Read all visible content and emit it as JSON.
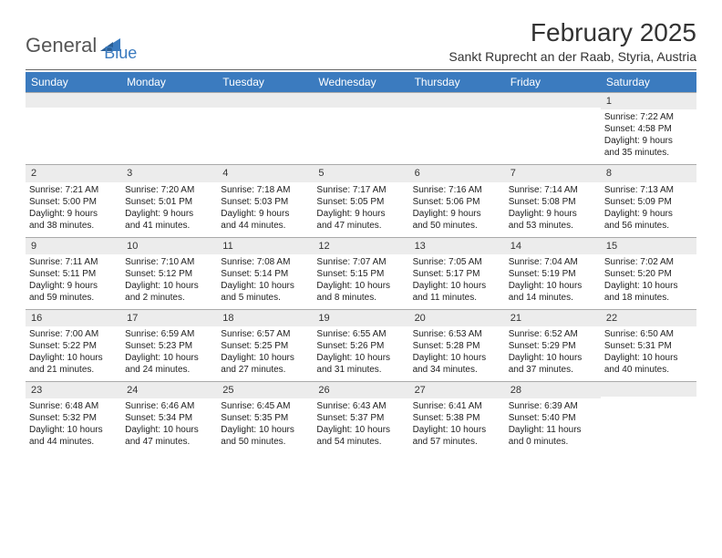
{
  "logo": {
    "text_gray": "General",
    "text_blue": "Blue",
    "shape_color": "#3b7bbf"
  },
  "header": {
    "month_title": "February 2025",
    "location": "Sankt Ruprecht an der Raab, Styria, Austria"
  },
  "weekdays": [
    "Sunday",
    "Monday",
    "Tuesday",
    "Wednesday",
    "Thursday",
    "Friday",
    "Saturday"
  ],
  "colors": {
    "header_bar": "#3b7bbf",
    "daynum_bg": "#ececec",
    "rule": "#666666",
    "text": "#222222"
  },
  "weeks": [
    [
      {
        "day": "",
        "sunrise": "",
        "sunset": "",
        "daylight1": "",
        "daylight2": ""
      },
      {
        "day": "",
        "sunrise": "",
        "sunset": "",
        "daylight1": "",
        "daylight2": ""
      },
      {
        "day": "",
        "sunrise": "",
        "sunset": "",
        "daylight1": "",
        "daylight2": ""
      },
      {
        "day": "",
        "sunrise": "",
        "sunset": "",
        "daylight1": "",
        "daylight2": ""
      },
      {
        "day": "",
        "sunrise": "",
        "sunset": "",
        "daylight1": "",
        "daylight2": ""
      },
      {
        "day": "",
        "sunrise": "",
        "sunset": "",
        "daylight1": "",
        "daylight2": ""
      },
      {
        "day": "1",
        "sunrise": "Sunrise: 7:22 AM",
        "sunset": "Sunset: 4:58 PM",
        "daylight1": "Daylight: 9 hours",
        "daylight2": "and 35 minutes."
      }
    ],
    [
      {
        "day": "2",
        "sunrise": "Sunrise: 7:21 AM",
        "sunset": "Sunset: 5:00 PM",
        "daylight1": "Daylight: 9 hours",
        "daylight2": "and 38 minutes."
      },
      {
        "day": "3",
        "sunrise": "Sunrise: 7:20 AM",
        "sunset": "Sunset: 5:01 PM",
        "daylight1": "Daylight: 9 hours",
        "daylight2": "and 41 minutes."
      },
      {
        "day": "4",
        "sunrise": "Sunrise: 7:18 AM",
        "sunset": "Sunset: 5:03 PM",
        "daylight1": "Daylight: 9 hours",
        "daylight2": "and 44 minutes."
      },
      {
        "day": "5",
        "sunrise": "Sunrise: 7:17 AM",
        "sunset": "Sunset: 5:05 PM",
        "daylight1": "Daylight: 9 hours",
        "daylight2": "and 47 minutes."
      },
      {
        "day": "6",
        "sunrise": "Sunrise: 7:16 AM",
        "sunset": "Sunset: 5:06 PM",
        "daylight1": "Daylight: 9 hours",
        "daylight2": "and 50 minutes."
      },
      {
        "day": "7",
        "sunrise": "Sunrise: 7:14 AM",
        "sunset": "Sunset: 5:08 PM",
        "daylight1": "Daylight: 9 hours",
        "daylight2": "and 53 minutes."
      },
      {
        "day": "8",
        "sunrise": "Sunrise: 7:13 AM",
        "sunset": "Sunset: 5:09 PM",
        "daylight1": "Daylight: 9 hours",
        "daylight2": "and 56 minutes."
      }
    ],
    [
      {
        "day": "9",
        "sunrise": "Sunrise: 7:11 AM",
        "sunset": "Sunset: 5:11 PM",
        "daylight1": "Daylight: 9 hours",
        "daylight2": "and 59 minutes."
      },
      {
        "day": "10",
        "sunrise": "Sunrise: 7:10 AM",
        "sunset": "Sunset: 5:12 PM",
        "daylight1": "Daylight: 10 hours",
        "daylight2": "and 2 minutes."
      },
      {
        "day": "11",
        "sunrise": "Sunrise: 7:08 AM",
        "sunset": "Sunset: 5:14 PM",
        "daylight1": "Daylight: 10 hours",
        "daylight2": "and 5 minutes."
      },
      {
        "day": "12",
        "sunrise": "Sunrise: 7:07 AM",
        "sunset": "Sunset: 5:15 PM",
        "daylight1": "Daylight: 10 hours",
        "daylight2": "and 8 minutes."
      },
      {
        "day": "13",
        "sunrise": "Sunrise: 7:05 AM",
        "sunset": "Sunset: 5:17 PM",
        "daylight1": "Daylight: 10 hours",
        "daylight2": "and 11 minutes."
      },
      {
        "day": "14",
        "sunrise": "Sunrise: 7:04 AM",
        "sunset": "Sunset: 5:19 PM",
        "daylight1": "Daylight: 10 hours",
        "daylight2": "and 14 minutes."
      },
      {
        "day": "15",
        "sunrise": "Sunrise: 7:02 AM",
        "sunset": "Sunset: 5:20 PM",
        "daylight1": "Daylight: 10 hours",
        "daylight2": "and 18 minutes."
      }
    ],
    [
      {
        "day": "16",
        "sunrise": "Sunrise: 7:00 AM",
        "sunset": "Sunset: 5:22 PM",
        "daylight1": "Daylight: 10 hours",
        "daylight2": "and 21 minutes."
      },
      {
        "day": "17",
        "sunrise": "Sunrise: 6:59 AM",
        "sunset": "Sunset: 5:23 PM",
        "daylight1": "Daylight: 10 hours",
        "daylight2": "and 24 minutes."
      },
      {
        "day": "18",
        "sunrise": "Sunrise: 6:57 AM",
        "sunset": "Sunset: 5:25 PM",
        "daylight1": "Daylight: 10 hours",
        "daylight2": "and 27 minutes."
      },
      {
        "day": "19",
        "sunrise": "Sunrise: 6:55 AM",
        "sunset": "Sunset: 5:26 PM",
        "daylight1": "Daylight: 10 hours",
        "daylight2": "and 31 minutes."
      },
      {
        "day": "20",
        "sunrise": "Sunrise: 6:53 AM",
        "sunset": "Sunset: 5:28 PM",
        "daylight1": "Daylight: 10 hours",
        "daylight2": "and 34 minutes."
      },
      {
        "day": "21",
        "sunrise": "Sunrise: 6:52 AM",
        "sunset": "Sunset: 5:29 PM",
        "daylight1": "Daylight: 10 hours",
        "daylight2": "and 37 minutes."
      },
      {
        "day": "22",
        "sunrise": "Sunrise: 6:50 AM",
        "sunset": "Sunset: 5:31 PM",
        "daylight1": "Daylight: 10 hours",
        "daylight2": "and 40 minutes."
      }
    ],
    [
      {
        "day": "23",
        "sunrise": "Sunrise: 6:48 AM",
        "sunset": "Sunset: 5:32 PM",
        "daylight1": "Daylight: 10 hours",
        "daylight2": "and 44 minutes."
      },
      {
        "day": "24",
        "sunrise": "Sunrise: 6:46 AM",
        "sunset": "Sunset: 5:34 PM",
        "daylight1": "Daylight: 10 hours",
        "daylight2": "and 47 minutes."
      },
      {
        "day": "25",
        "sunrise": "Sunrise: 6:45 AM",
        "sunset": "Sunset: 5:35 PM",
        "daylight1": "Daylight: 10 hours",
        "daylight2": "and 50 minutes."
      },
      {
        "day": "26",
        "sunrise": "Sunrise: 6:43 AM",
        "sunset": "Sunset: 5:37 PM",
        "daylight1": "Daylight: 10 hours",
        "daylight2": "and 54 minutes."
      },
      {
        "day": "27",
        "sunrise": "Sunrise: 6:41 AM",
        "sunset": "Sunset: 5:38 PM",
        "daylight1": "Daylight: 10 hours",
        "daylight2": "and 57 minutes."
      },
      {
        "day": "28",
        "sunrise": "Sunrise: 6:39 AM",
        "sunset": "Sunset: 5:40 PM",
        "daylight1": "Daylight: 11 hours",
        "daylight2": "and 0 minutes."
      },
      {
        "day": "",
        "sunrise": "",
        "sunset": "",
        "daylight1": "",
        "daylight2": ""
      }
    ]
  ]
}
